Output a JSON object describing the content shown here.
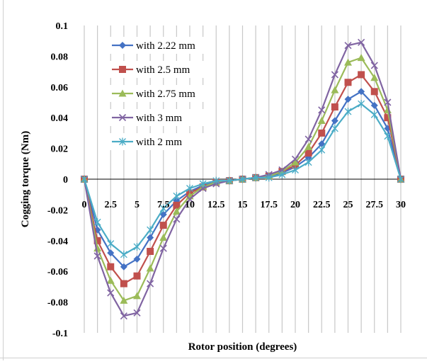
{
  "chart_data": {
    "type": "line",
    "xlabel": "Rotor position (degrees)",
    "ylabel": "Cogging torque (Nm)",
    "xlim": [
      0,
      30
    ],
    "ylim": [
      -0.1,
      0.1
    ],
    "x_ticks": [
      "0",
      "2.5",
      "5",
      "7.5",
      "10",
      "12.5",
      "15",
      "17.5",
      "20",
      "22.5",
      "25",
      "27.5",
      "30"
    ],
    "y_ticks": [
      "0.1",
      "0.08",
      "0.06",
      "0.04",
      "0.02",
      "0",
      "-0.02",
      "-0.04",
      "-0.06",
      "-0.08",
      "-0.1"
    ],
    "grid": "vertical",
    "legend_position": "top-left",
    "x": [
      0,
      1.25,
      2.5,
      3.75,
      5,
      6.25,
      7.5,
      8.75,
      10,
      11.25,
      12.5,
      13.75,
      15,
      16.25,
      17.5,
      18.75,
      20,
      21.25,
      22.5,
      23.75,
      25,
      26.25,
      27.5,
      28.75,
      30
    ],
    "series": [
      {
        "name": "with 2.22 mm",
        "color": "#4472C4",
        "marker": "diamond",
        "values": [
          0,
          -0.033,
          -0.048,
          -0.057,
          -0.052,
          -0.038,
          -0.023,
          -0.014,
          -0.008,
          -0.004,
          -0.002,
          -0.001,
          0,
          0.001,
          0.002,
          0.004,
          0.008,
          0.014,
          0.023,
          0.038,
          0.052,
          0.057,
          0.048,
          0.033,
          0
        ]
      },
      {
        "name": "with 2.5 mm",
        "color": "#C0504D",
        "marker": "square",
        "values": [
          0,
          -0.04,
          -0.057,
          -0.068,
          -0.063,
          -0.047,
          -0.03,
          -0.017,
          -0.009,
          -0.005,
          -0.002,
          -0.001,
          0,
          0.001,
          0.002,
          0.005,
          0.009,
          0.017,
          0.03,
          0.047,
          0.063,
          0.068,
          0.057,
          0.04,
          0
        ]
      },
      {
        "name": "with 2.75 mm",
        "color": "#9BBB59",
        "marker": "triangle",
        "values": [
          0,
          -0.045,
          -0.066,
          -0.079,
          -0.076,
          -0.058,
          -0.038,
          -0.021,
          -0.011,
          -0.005,
          -0.002,
          -0.001,
          0,
          0.001,
          0.002,
          0.005,
          0.011,
          0.021,
          0.038,
          0.058,
          0.076,
          0.079,
          0.066,
          0.045,
          0
        ]
      },
      {
        "name": "with 3 mm",
        "color": "#8064A2",
        "marker": "x",
        "values": [
          0,
          -0.05,
          -0.074,
          -0.089,
          -0.087,
          -0.068,
          -0.045,
          -0.026,
          -0.013,
          -0.006,
          -0.003,
          -0.001,
          0,
          0.001,
          0.003,
          0.006,
          0.013,
          0.026,
          0.045,
          0.068,
          0.087,
          0.089,
          0.074,
          0.05,
          0
        ]
      },
      {
        "name": "with 2 mm",
        "color": "#4BACC6",
        "marker": "star",
        "values": [
          0,
          -0.028,
          -0.042,
          -0.049,
          -0.044,
          -0.033,
          -0.019,
          -0.011,
          -0.006,
          -0.003,
          -0.001,
          -0.001,
          0,
          0.001,
          0.001,
          0.003,
          0.006,
          0.011,
          0.019,
          0.033,
          0.044,
          0.049,
          0.042,
          0.028,
          0
        ]
      }
    ]
  }
}
